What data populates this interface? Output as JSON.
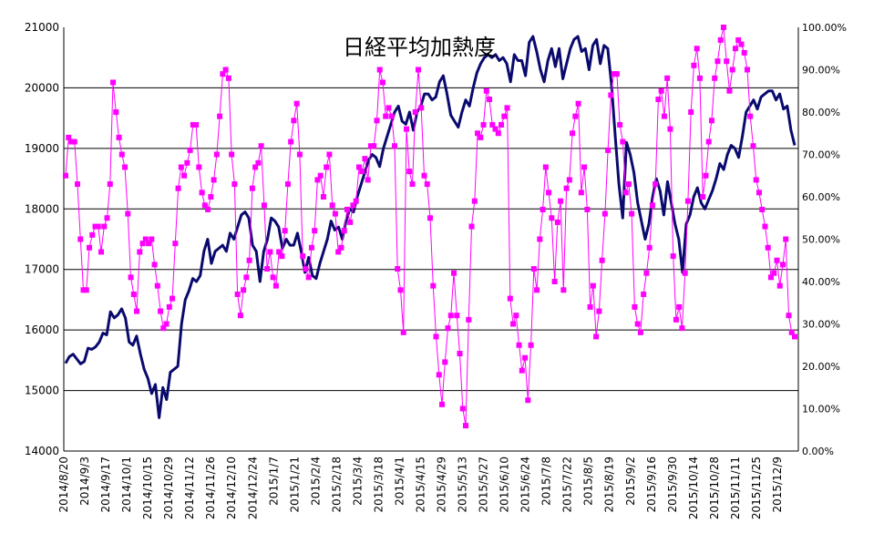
{
  "chart_data": {
    "type": "line",
    "title": "日経平均加熱度",
    "xlabel": "",
    "ylabel": "",
    "ylim": [
      14000,
      21000
    ],
    "y2lim": [
      0,
      100
    ],
    "grid": true,
    "yticks": [
      "14000",
      "15000",
      "16000",
      "17000",
      "18000",
      "19000",
      "20000",
      "21000"
    ],
    "y2ticks": [
      "0.00%",
      "10.00%",
      "20.00%",
      "30.00%",
      "40.00%",
      "50.00%",
      "60.00%",
      "70.00%",
      "80.00%",
      "90.00%",
      "100.00%"
    ],
    "xticks": [
      "2014/8/20",
      "2014/9/3",
      "2014/9/17",
      "2014/10/1",
      "2014/10/15",
      "2014/10/29",
      "2014/11/12",
      "2014/11/26",
      "2014/12/10",
      "2014/12/24",
      "2015/1/7",
      "2015/1/21",
      "2015/2/4",
      "2015/2/18",
      "2015/3/4",
      "2015/3/18",
      "2015/4/1",
      "2015/4/15",
      "2015/4/29",
      "2015/5/13",
      "2015/5/27",
      "2015/6/10",
      "2015/6/24",
      "2015/7/8",
      "2015/7/22",
      "2015/8/5",
      "2015/8/19",
      "2015/9/2",
      "2015/9/16",
      "2015/9/30",
      "2015/10/14",
      "2015/10/28",
      "2015/11/11",
      "2015/11/25",
      "2015/12/9"
    ],
    "series": [
      {
        "axis": "left",
        "color": "#0a0a6e",
        "values": [
          15450,
          15560,
          15600,
          15520,
          15440,
          15480,
          15700,
          15680,
          15720,
          15800,
          15950,
          15920,
          16300,
          16200,
          16250,
          16350,
          16200,
          15800,
          15750,
          15900,
          15600,
          15350,
          15200,
          14950,
          15100,
          14550,
          15050,
          14850,
          15300,
          15350,
          15400,
          16100,
          16500,
          16650,
          16850,
          16800,
          16900,
          17300,
          17500,
          17100,
          17300,
          17350,
          17400,
          17300,
          17600,
          17500,
          17700,
          17900,
          17950,
          17850,
          17400,
          17300,
          16800,
          17300,
          17500,
          17850,
          17800,
          17700,
          17350,
          17500,
          17400,
          17400,
          17600,
          17300,
          16950,
          17200,
          16900,
          16850,
          17100,
          17300,
          17500,
          17800,
          17650,
          17700,
          17500,
          17800,
          18000,
          17950,
          18200,
          18400,
          18600,
          18800,
          18900,
          18850,
          18700,
          19000,
          19200,
          19400,
          19600,
          19700,
          19450,
          19400,
          19600,
          19300,
          19600,
          19700,
          19900,
          19900,
          19800,
          19850,
          20100,
          20200,
          19900,
          19550,
          19450,
          19350,
          19600,
          19800,
          19700,
          20000,
          20250,
          20400,
          20500,
          20550,
          20500,
          20550,
          20450,
          20500,
          20400,
          20100,
          20550,
          20450,
          20450,
          20200,
          20750,
          20850,
          20600,
          20300,
          20100,
          20450,
          20650,
          20350,
          20650,
          20150,
          20400,
          20650,
          20800,
          20850,
          20600,
          20650,
          20300,
          20700,
          20800,
          20400,
          20700,
          20650,
          20050,
          19200,
          18400,
          17850,
          19100,
          18900,
          18600,
          18100,
          17800,
          17500,
          17750,
          18200,
          18500,
          18300,
          17900,
          18450,
          18100,
          17750,
          17500,
          16950,
          17750,
          17900,
          18200,
          18350,
          18100,
          18000,
          18150,
          18300,
          18500,
          18750,
          18650,
          18900,
          19050,
          19000,
          18850,
          19200,
          19600,
          19700,
          19800,
          19650,
          19850,
          19900,
          19950,
          19950,
          19800,
          19900,
          19650,
          19700,
          19300,
          19050
        ]
      },
      {
        "axis": "right",
        "color": "#ff00ff",
        "values": [
          65,
          74,
          73,
          73,
          63,
          50,
          38,
          38,
          48,
          51,
          53,
          53,
          47,
          53,
          55,
          63,
          87,
          80,
          74,
          70,
          67,
          56,
          41,
          37,
          33,
          47,
          49,
          50,
          49,
          50,
          44,
          39,
          33,
          29,
          30,
          34,
          36,
          49,
          62,
          67,
          65,
          68,
          71,
          77,
          77,
          67,
          61,
          58,
          57,
          60,
          64,
          70,
          79,
          89,
          90,
          88,
          70,
          63,
          37,
          32,
          38,
          41,
          45,
          62,
          67,
          68,
          72,
          58,
          43,
          47,
          41,
          39,
          47,
          46,
          52,
          63,
          73,
          78,
          82,
          70,
          46,
          43,
          41,
          48,
          52,
          64,
          65,
          60,
          67,
          70,
          58,
          56,
          47,
          48,
          52,
          57,
          54,
          58,
          59,
          67,
          66,
          69,
          64,
          72,
          72,
          78,
          90,
          87,
          79,
          81,
          79,
          72,
          43,
          38,
          28,
          76,
          66,
          63,
          80,
          90,
          81,
          65,
          63,
          55,
          39,
          27,
          18,
          11,
          21,
          29,
          32,
          42,
          32,
          23,
          10,
          6,
          31,
          53,
          59,
          75,
          74,
          77,
          85,
          83,
          77,
          76,
          75,
          77,
          79,
          81,
          36,
          30,
          32,
          25,
          19,
          22,
          12,
          25,
          43,
          38,
          50,
          57,
          67,
          61,
          55,
          40,
          54,
          59,
          38,
          62,
          64,
          75,
          79,
          82,
          61,
          67,
          57,
          34,
          39,
          27,
          33,
          45,
          56,
          71,
          84,
          89,
          89,
          77,
          73,
          61,
          63,
          56,
          34,
          30,
          28,
          37,
          42,
          48,
          58,
          63,
          83,
          85,
          79,
          88,
          76,
          46,
          31,
          34,
          29,
          42,
          59,
          80,
          91,
          95,
          88,
          60,
          65,
          73,
          78,
          88,
          92,
          97,
          100,
          92,
          85,
          90,
          95,
          97,
          96,
          94,
          90,
          79,
          72,
          64,
          61,
          57,
          53,
          48,
          41,
          42,
          45,
          39,
          44,
          50,
          32,
          28,
          27
        ]
      }
    ]
  }
}
